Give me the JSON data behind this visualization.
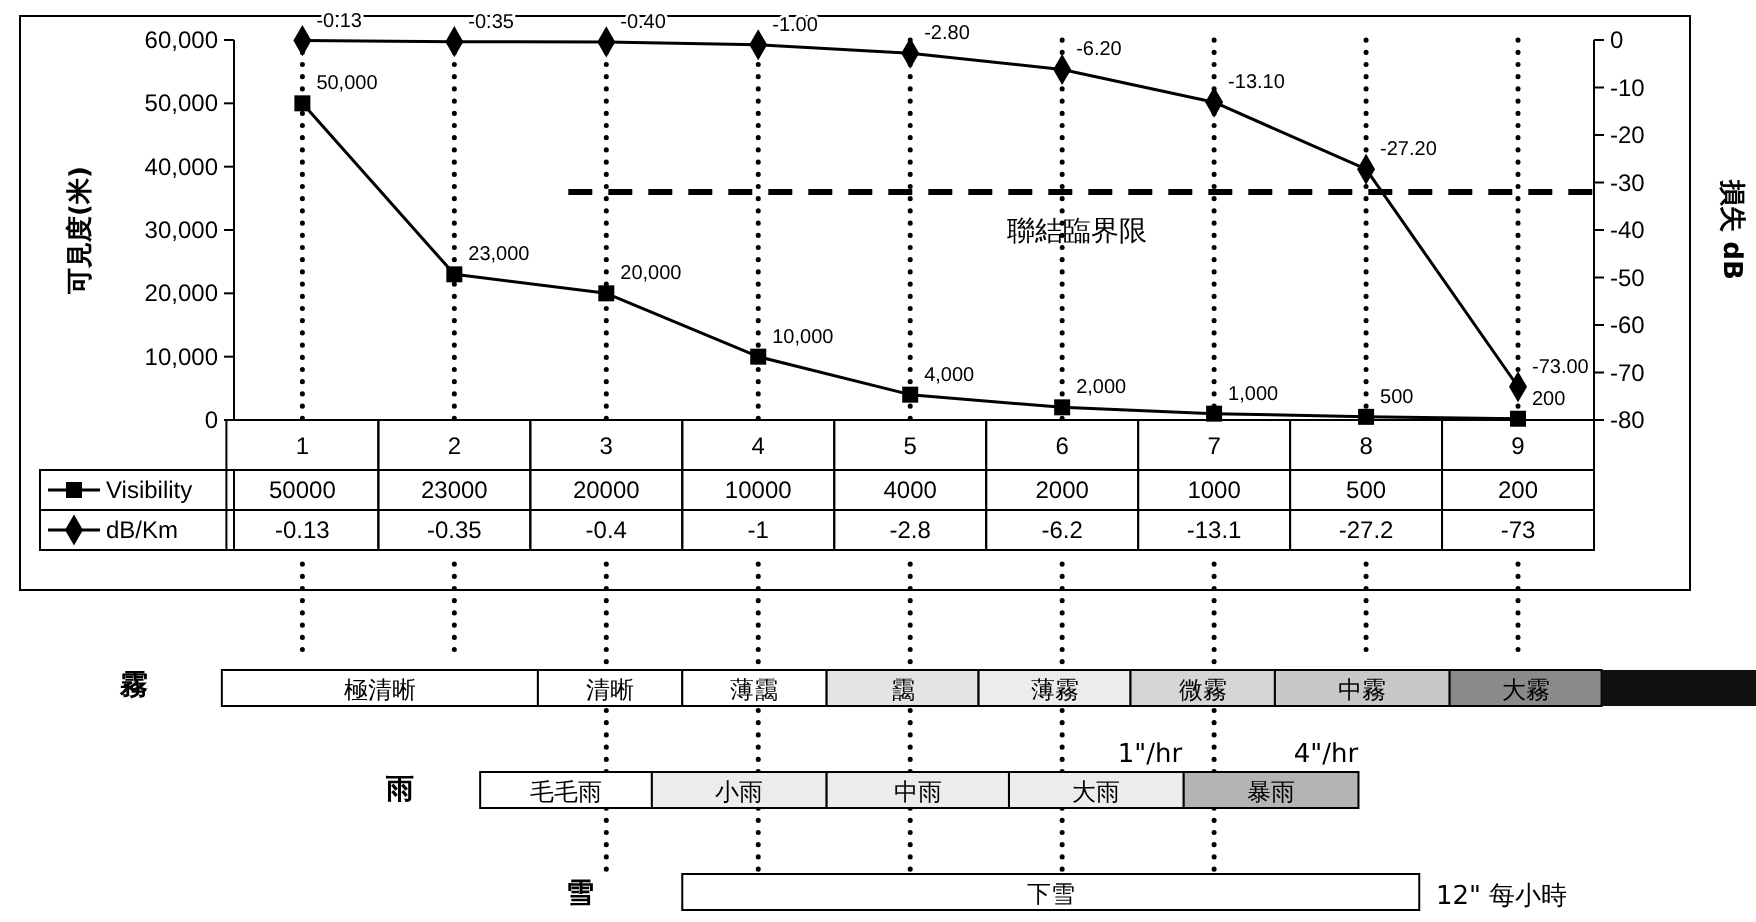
{
  "chart_data": {
    "type": "line",
    "categories": [
      "1",
      "2",
      "3",
      "4",
      "5",
      "6",
      "7",
      "8",
      "9"
    ],
    "ylabel": "可見度(米)",
    "y2label": "損失 dB",
    "ylim": [
      0,
      60000
    ],
    "yticks": [
      0,
      {
        "value": 10000,
        "label": "10,000"
      },
      {
        "value": 20000,
        "label": "20,000"
      },
      {
        "value": 30000,
        "label": "30,000"
      },
      {
        "value": 40000,
        "label": "40,000"
      },
      {
        "value": 50000,
        "label": "50,000"
      },
      {
        "value": 60000,
        "label": "60,000"
      }
    ],
    "y2lim": [
      -80,
      0
    ],
    "y2ticks": [
      -80,
      -70,
      -60,
      -50,
      -40,
      -30,
      -20,
      -10,
      0
    ],
    "series": [
      {
        "name": "Visibility",
        "color": "#000000",
        "marker": "square",
        "values": [
          50000,
          23000,
          20000,
          10000,
          4000,
          2000,
          1000,
          500,
          200
        ],
        "value_labels": [
          "50,000",
          "23,000",
          "20,000",
          "10,000",
          "4,000",
          "2,000",
          "1,000",
          "500",
          "200"
        ]
      },
      {
        "name": "dB/Km",
        "color": "#000000",
        "marker": "diamond",
        "axis": "y2",
        "values": [
          -0.13,
          -0.35,
          -0.4,
          -1,
          -2.8,
          -6.2,
          -13.1,
          -27.2,
          -73
        ],
        "value_labels": [
          "-0.13",
          "-0.35",
          "-0.40",
          "-1.00",
          "-2.80",
          "-6.20",
          "-13.10",
          "-27.20",
          "-73.00"
        ]
      }
    ],
    "ref_lines": [
      {
        "axis": "y2",
        "value": -32,
        "label": "聯結臨界限",
        "color": "#000000",
        "line_style": "dashed"
      }
    ],
    "grid": "x",
    "legend": "bottom",
    "line_style": "solid",
    "annotations": [
      "霧",
      "極清晰",
      "清晰",
      "薄靄",
      "靄",
      "薄霧",
      "微霧",
      "中霧",
      "大霧",
      "雨",
      "毛毛雨",
      "小雨",
      "中雨",
      "大雨",
      "暴雨",
      "1\"/hr",
      "4\"/hr",
      "雪",
      "下雪",
      "12\" 每小時",
      "50000",
      "23000",
      "20000",
      "10000",
      "4000",
      "2000",
      "1000",
      "500",
      "200",
      "-0.13",
      "-0.35",
      "-0.4",
      "-1",
      "-2.8",
      "-6.2",
      "-13.1",
      "-27.2",
      "-73"
    ]
  }
}
